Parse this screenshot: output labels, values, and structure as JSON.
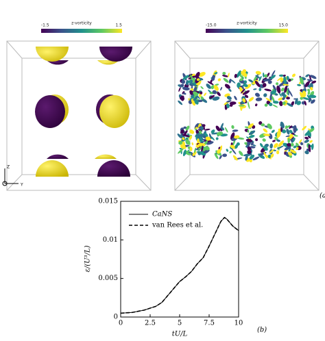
{
  "panels": [
    {
      "colorbar": {
        "min": "-1.5",
        "title": "z-vorticity",
        "max": "1.5"
      }
    },
    {
      "colorbar": {
        "min": "-15.0",
        "title": "z-vorticity",
        "max": "15.0"
      }
    }
  ],
  "axes_triad": {
    "z": "Z",
    "y": "Y"
  },
  "panel_label_a": "(a",
  "chart_data": {
    "type": "line",
    "xlabel": "tU/L",
    "ylabel": "ε/(U³/L)",
    "panel_label": "(b)",
    "x": [
      0,
      1,
      2,
      3,
      3.5,
      4,
      4.5,
      5,
      5.5,
      6,
      6.5,
      7,
      7.5,
      8,
      8.5,
      8.8,
      9,
      9.5,
      10
    ],
    "series": [
      {
        "name": "CaNS",
        "color": "#000000",
        "dash": "solid",
        "values": [
          0.0005,
          0.0006,
          0.0009,
          0.0014,
          0.0019,
          0.0028,
          0.0037,
          0.0046,
          0.0052,
          0.0059,
          0.0069,
          0.0077,
          0.0092,
          0.0108,
          0.0124,
          0.0129,
          0.0127,
          0.0118,
          0.0112
        ]
      },
      {
        "name": "van Rees et al.",
        "color": "#000000",
        "dash": "dashed",
        "values": [
          0.0005,
          0.0006,
          0.0009,
          0.0014,
          0.0019,
          0.0028,
          0.0037,
          0.0046,
          0.0052,
          0.0059,
          0.0069,
          0.0077,
          0.0092,
          0.0108,
          0.0124,
          0.0129,
          0.0127,
          0.0118,
          0.0112
        ]
      }
    ],
    "xlim": [
      0,
      10
    ],
    "xticks": [
      0,
      2.5,
      5,
      7.5,
      10
    ],
    "ylim": [
      0,
      0.015
    ],
    "yticks": [
      0,
      0.005,
      0.01,
      0.015
    ],
    "legend": "upper-left"
  }
}
